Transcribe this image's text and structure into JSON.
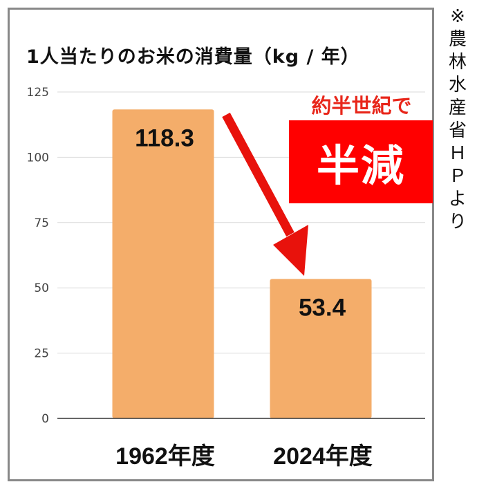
{
  "chart_data": {
    "type": "bar",
    "title": "1人当たりのお米の消費量（kg / 年）",
    "categories": [
      "1962年度",
      "2024年度"
    ],
    "values": [
      118.3,
      53.4
    ],
    "data_labels": [
      "118.3",
      "53.4"
    ],
    "yticks": [
      0,
      25,
      50,
      75,
      100,
      125
    ],
    "ylim": [
      0,
      125
    ],
    "grid": true,
    "legend": "none",
    "colors": {
      "bar": "#f4ad6a",
      "grid": "#d9d9d9",
      "axis": "#333333",
      "arrow": "#e8120c"
    },
    "annotation": {
      "caption": "約半世紀で",
      "highlight": "半減"
    }
  },
  "source_note_chars": [
    "※",
    "農",
    "林",
    "水",
    "産",
    "省",
    "Ｈ",
    "Ｐ",
    "よ",
    "り"
  ]
}
